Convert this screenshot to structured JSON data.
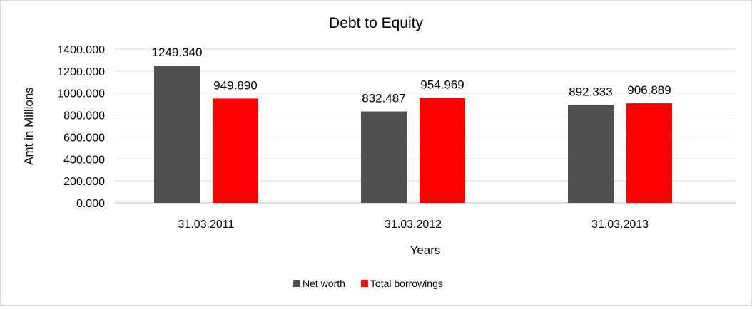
{
  "chart_data": {
    "type": "bar",
    "title": "Debt to Equity",
    "xlabel": "Years",
    "ylabel": "Amt in Millions",
    "categories": [
      "31.03.2011",
      "31.03.2012",
      "31.03.2013"
    ],
    "series": [
      {
        "name": "Net worth",
        "values": [
          1249.34,
          832.487,
          892.333
        ],
        "color": "#505050"
      },
      {
        "name": "Total borrowings",
        "values": [
          949.89,
          954.969,
          906.889
        ],
        "color": "#ff0000"
      }
    ],
    "ylim": [
      0,
      1400
    ],
    "yticks": [
      0,
      200,
      400,
      600,
      800,
      1000,
      1200,
      1400
    ],
    "tick_decimals": 3,
    "label_decimals": 3,
    "grid": true,
    "legend_position": "bottom"
  }
}
